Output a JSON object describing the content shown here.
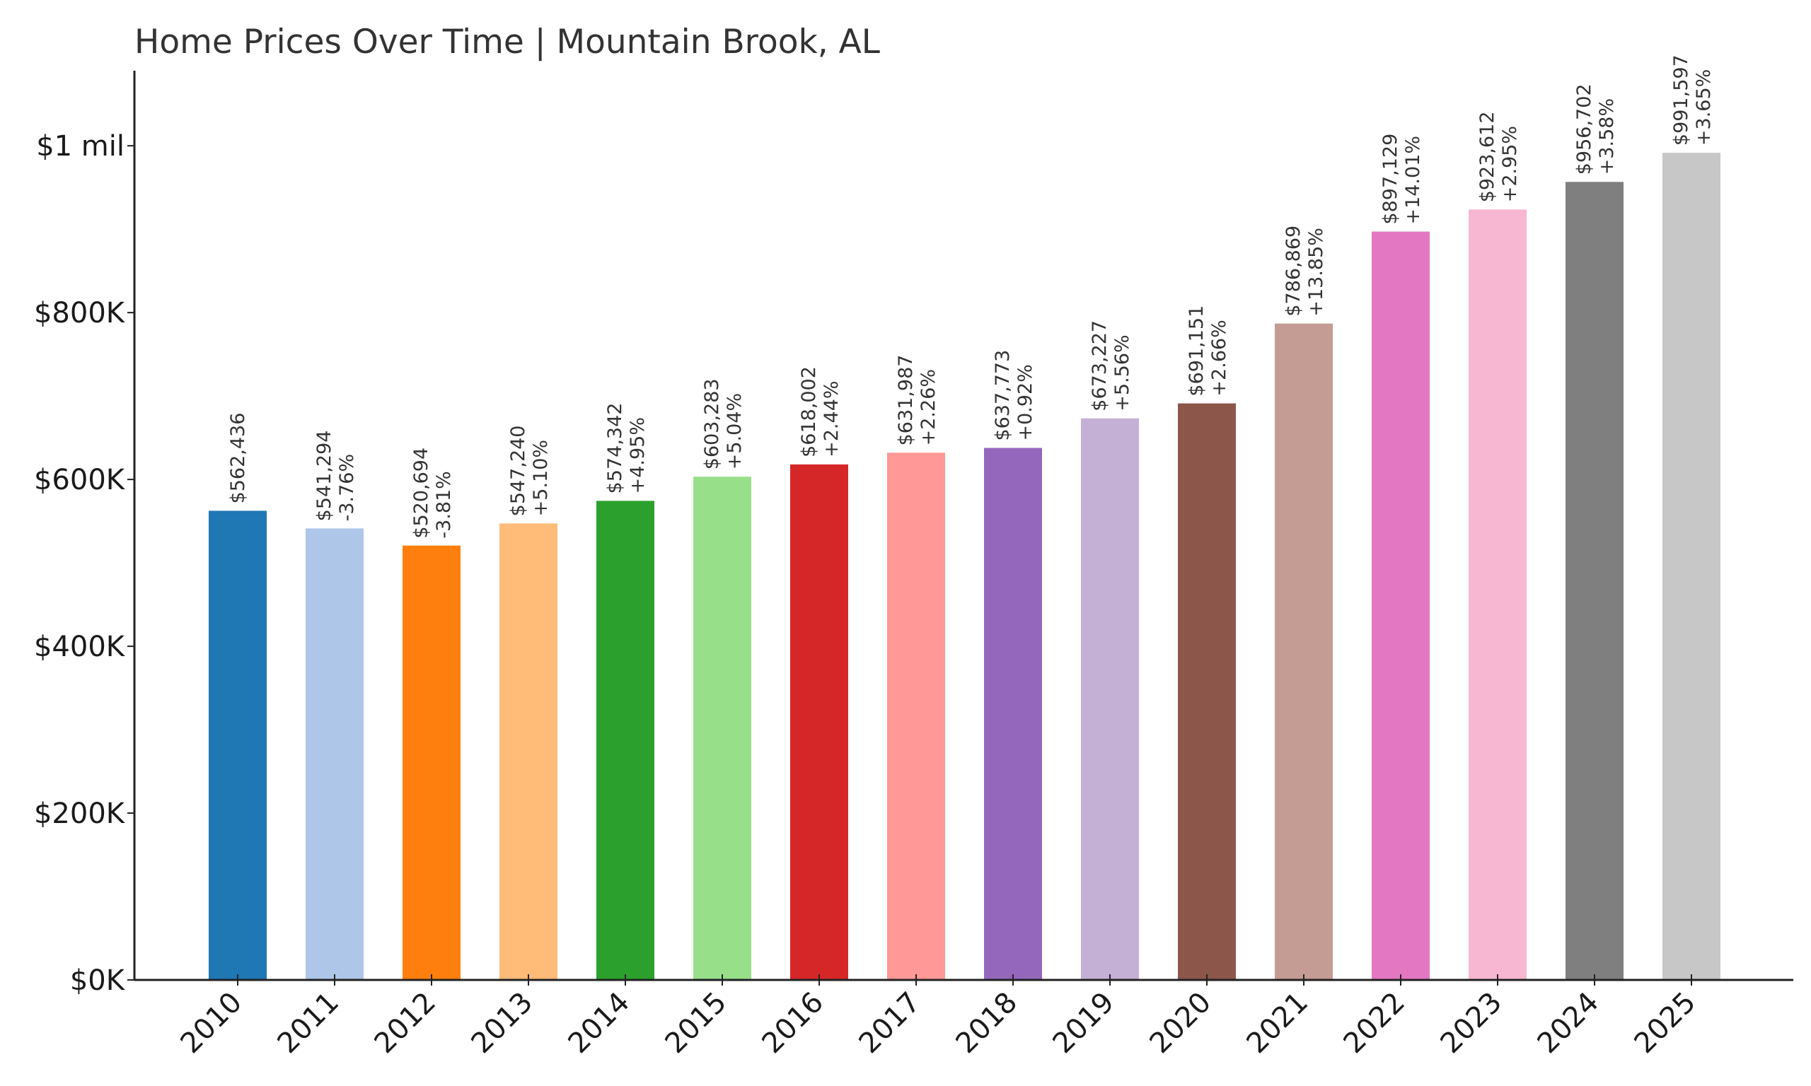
{
  "chart_data": {
    "type": "bar",
    "title": "Home Prices Over Time | Mountain Brook, AL",
    "xlabel": "",
    "ylabel": "",
    "ylim": [
      0,
      1090000
    ],
    "grid": false,
    "categories": [
      "2010",
      "2011",
      "2012",
      "2013",
      "2014",
      "2015",
      "2016",
      "2017",
      "2018",
      "2019",
      "2020",
      "2021",
      "2022",
      "2023",
      "2024",
      "2025"
    ],
    "values": [
      562436,
      541294,
      520694,
      547240,
      574342,
      603283,
      618002,
      631987,
      637773,
      673227,
      691151,
      786869,
      897129,
      923612,
      956702,
      991597
    ],
    "value_labels": [
      "$562,436",
      "$541,294",
      "$520,694",
      "$547,240",
      "$574,342",
      "$603,283",
      "$618,002",
      "$631,987",
      "$637,773",
      "$673,227",
      "$691,151",
      "$786,869",
      "$897,129",
      "$923,612",
      "$956,702",
      "$991,597"
    ],
    "change_labels": [
      "",
      "-3.76%",
      "-3.81%",
      "+5.10%",
      "+4.95%",
      "+5.04%",
      "+2.44%",
      "+2.26%",
      "+0.92%",
      "+5.56%",
      "+2.66%",
      "+13.85%",
      "+14.01%",
      "+2.95%",
      "+3.58%",
      "+3.65%"
    ],
    "yticks": [
      {
        "value": 0,
        "label": "$0K"
      },
      {
        "value": 200000,
        "label": "$200K"
      },
      {
        "value": 400000,
        "label": "$400K"
      },
      {
        "value": 600000,
        "label": "$600K"
      },
      {
        "value": 800000,
        "label": "$800K"
      },
      {
        "value": 1000000,
        "label": "$1 mil"
      }
    ],
    "colors": [
      "#1f77b4",
      "#aec7e8",
      "#ff7f0e",
      "#ffbb78",
      "#2ca02c",
      "#98df8a",
      "#d62728",
      "#ff9896",
      "#9467bd",
      "#c5b0d5",
      "#8c564b",
      "#c49c94",
      "#e377c2",
      "#f7b6d2",
      "#7f7f7f",
      "#c7c7c7"
    ]
  }
}
